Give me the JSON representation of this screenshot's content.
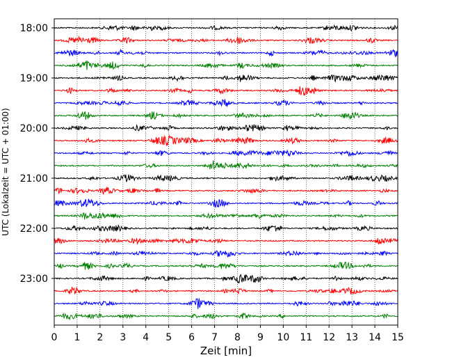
{
  "chart_data": {
    "type": "line",
    "title": "",
    "xlabel": "Zeit  [min]",
    "ylabel": "UTC (Lokalzeit = UTC + 01:00)",
    "xlim": [
      0,
      15
    ],
    "x_ticks": [
      0,
      1,
      2,
      3,
      4,
      5,
      6,
      7,
      8,
      9,
      10,
      11,
      12,
      13,
      14,
      15
    ],
    "y_tick_labels": [
      "18:00",
      "19:00",
      "20:00",
      "21:00",
      "22:00",
      "23:00"
    ],
    "trace_interval_min": 15,
    "trace_count": 24,
    "trace_colors": [
      "#000000",
      "#ff0000",
      "#0000ff",
      "#007f00"
    ],
    "grid": "vertical-dotted"
  }
}
